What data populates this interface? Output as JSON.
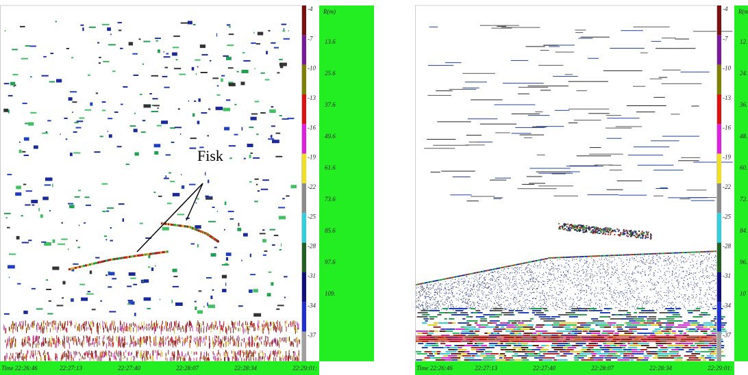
{
  "panels": [
    {
      "colorbar_labels": [
        "-4",
        "-7",
        "-10",
        "-13",
        "-16",
        "-19",
        "-22",
        "-25",
        "-28",
        "-31",
        "-34",
        "-37"
      ],
      "range_header": "R(m)",
      "range_labels": [
        "13.6",
        "25.6",
        "37.6",
        "49.6",
        "61.6",
        "73.6",
        "85.6",
        "97.6",
        "109."
      ],
      "time_labels": [
        "Time 22:26:46",
        "22:27:13",
        "22:27:40",
        "22:28:07",
        "22:28:34",
        "22:29:01:"
      ],
      "annotation": "Fisk"
    },
    {
      "colorbar_labels": [
        "-4",
        "-7",
        "-10",
        "-13",
        "-16",
        "-19",
        "-22",
        "-25",
        "-28",
        "-31",
        "-34",
        "-37"
      ],
      "range_header": "R(m)",
      "range_labels": [
        "12.",
        "24.",
        "36.",
        "48.",
        "60.",
        "72.",
        "84.",
        "96.",
        "10"
      ],
      "time_labels": [
        "Time 22:26:46",
        "22:27:13",
        "22:27:40",
        "22:28:07",
        "22:28:34",
        "22:29:01:"
      ]
    }
  ]
}
